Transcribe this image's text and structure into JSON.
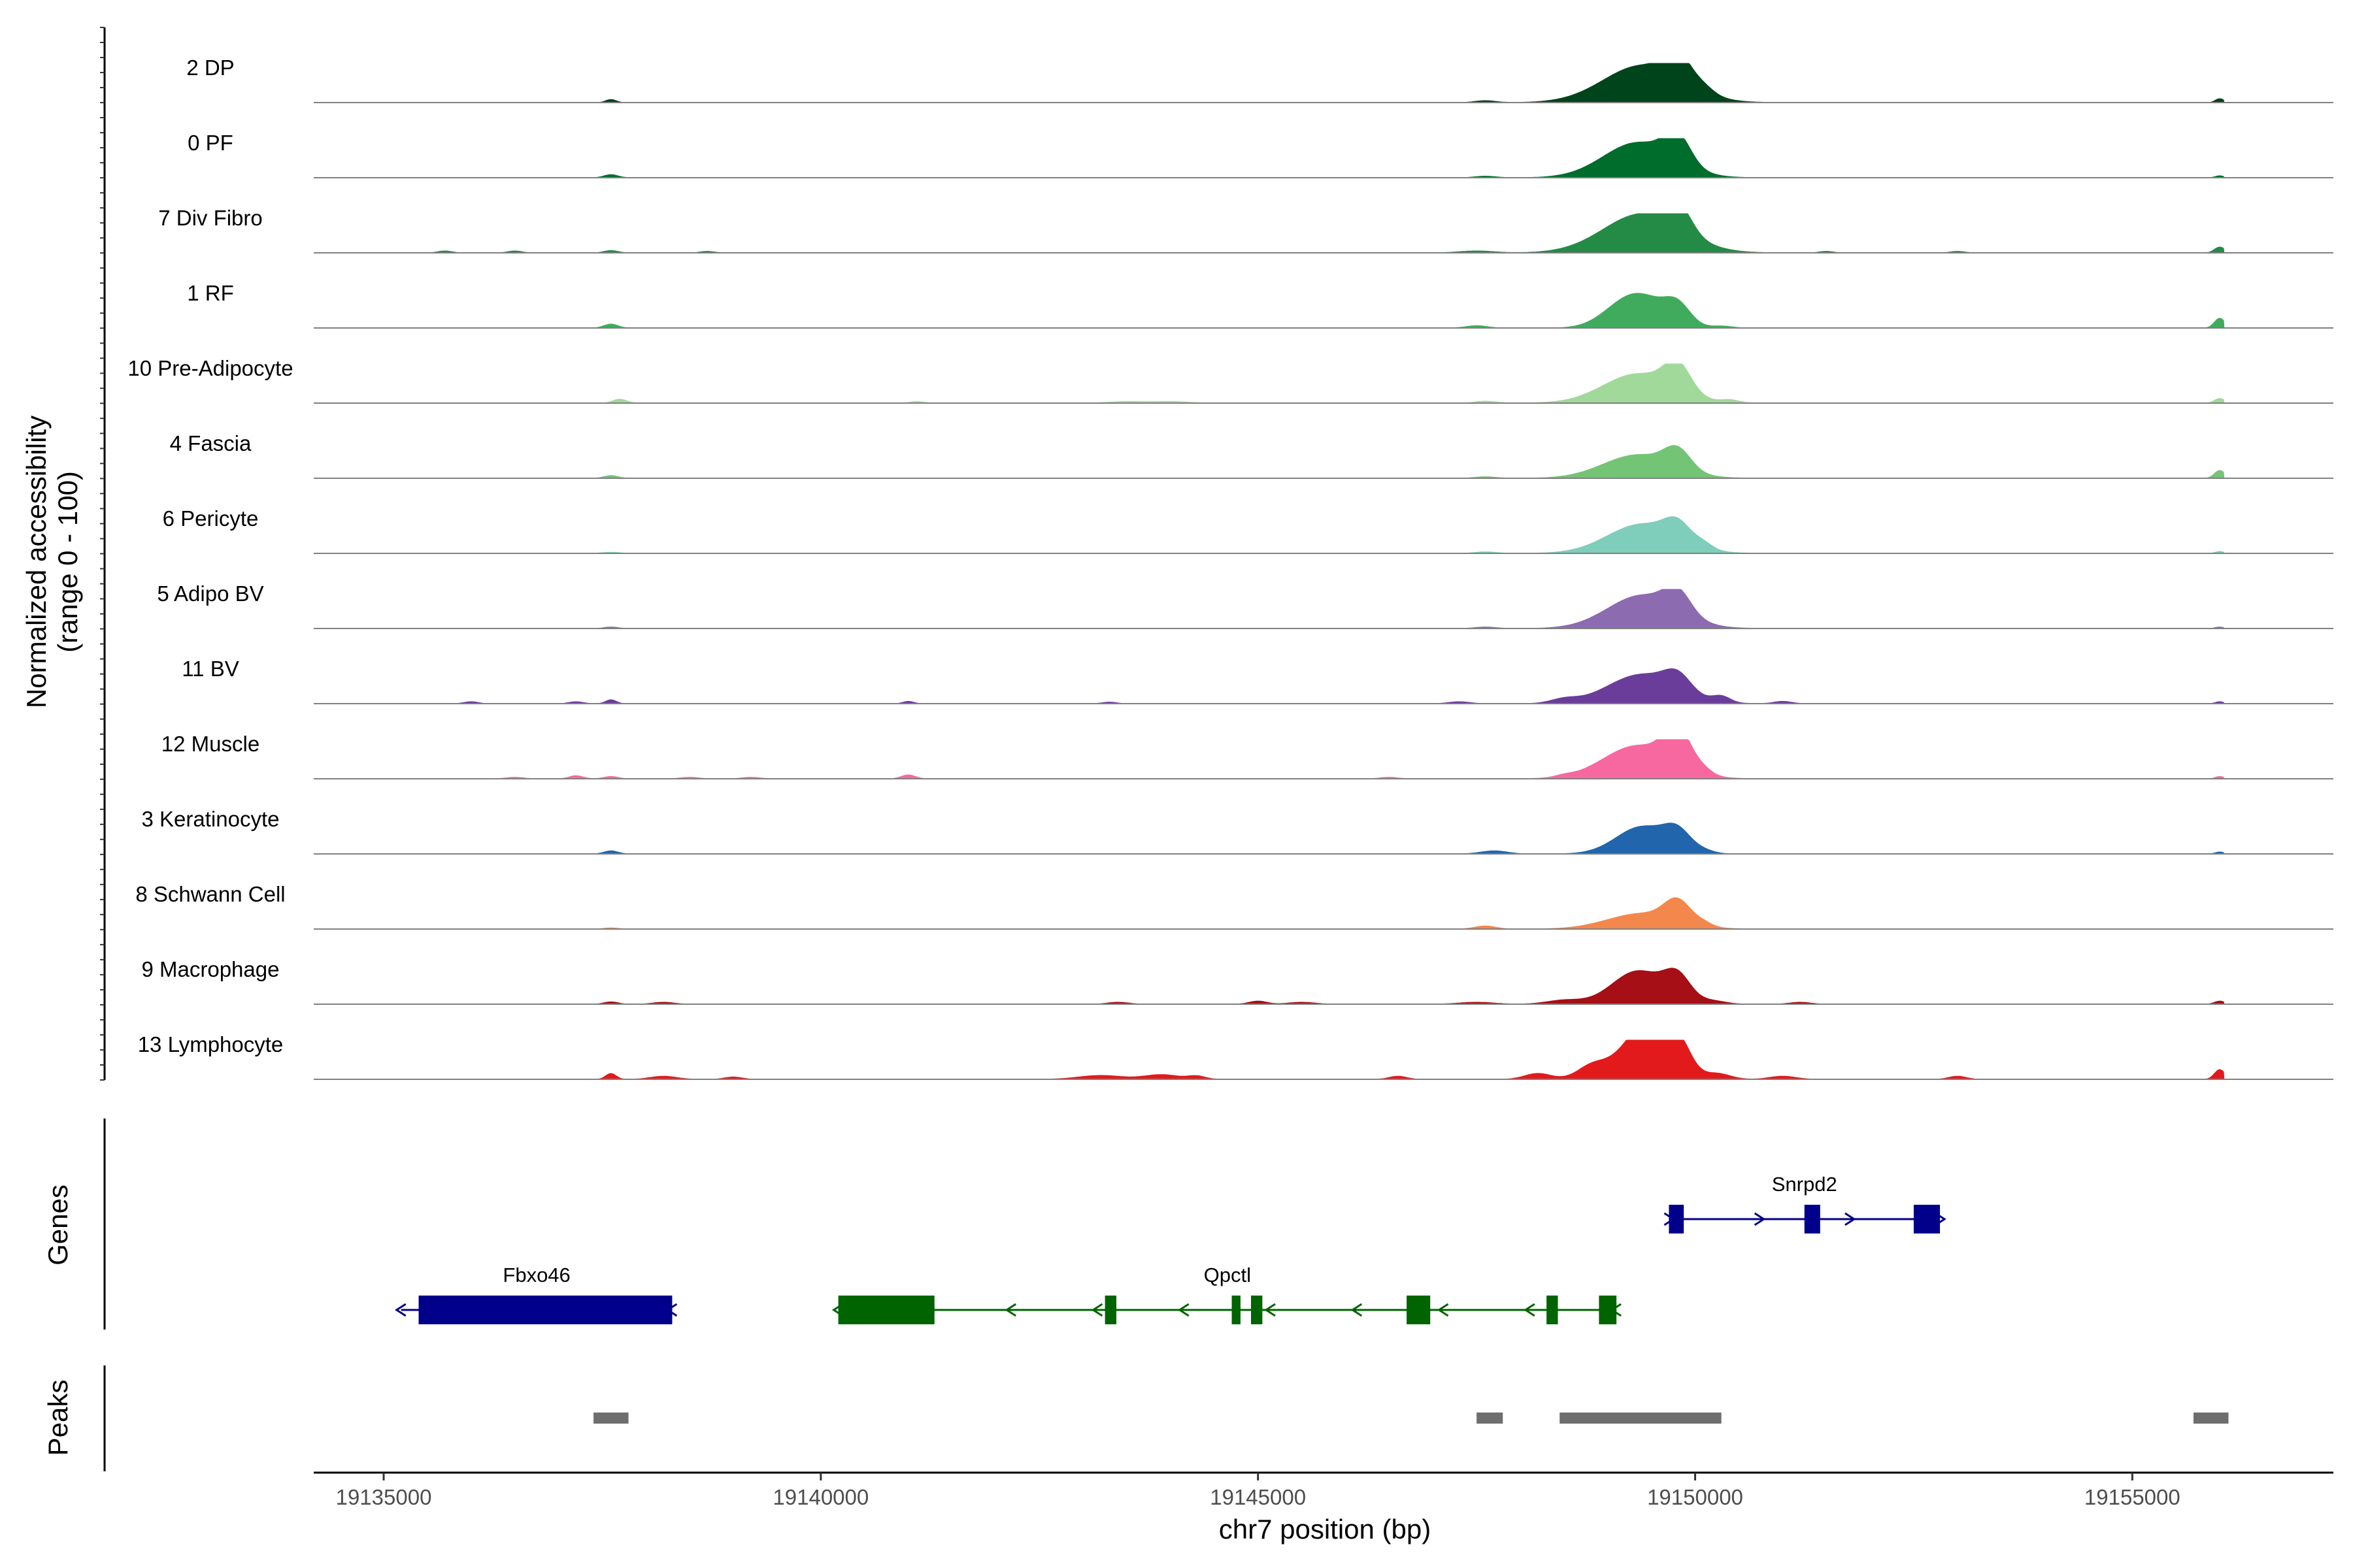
{
  "chart_data": {
    "type": "area",
    "title": "",
    "ylabel_line1": "Normalized accessibility",
    "ylabel_line2": "(range 0 - 100)",
    "xlabel": "chr7 position (bp)",
    "xlim": [
      19134200,
      19157300
    ],
    "ylim": [
      0,
      100
    ],
    "x_ticks": [
      19135000,
      19140000,
      19145000,
      19150000,
      19155000
    ],
    "x_tick_labels": [
      "19135000",
      "19140000",
      "19145000",
      "19150000",
      "19155000"
    ],
    "tracks": [
      {
        "name": "2 DP",
        "color": "#00441b",
        "peaks": [
          [
            19137600,
            8,
            60
          ],
          [
            19147600,
            5,
            120
          ],
          [
            19149400,
            95,
            450
          ],
          [
            19149800,
            70,
            150
          ],
          [
            19150100,
            15,
            120
          ],
          [
            19156000,
            10,
            50
          ]
        ]
      },
      {
        "name": "0 PF",
        "color": "#006d2c",
        "peaks": [
          [
            19137600,
            8,
            80
          ],
          [
            19147600,
            4,
            120
          ],
          [
            19149350,
            90,
            400
          ],
          [
            19149800,
            70,
            150
          ],
          [
            19156000,
            5,
            50
          ]
        ]
      },
      {
        "name": "7 Div Fibro",
        "color": "#238b45",
        "peaks": [
          [
            19135700,
            5,
            80
          ],
          [
            19136500,
            5,
            80
          ],
          [
            19137600,
            6,
            80
          ],
          [
            19138700,
            4,
            80
          ],
          [
            19147500,
            5,
            200
          ],
          [
            19149400,
            100,
            450
          ],
          [
            19149800,
            65,
            150
          ],
          [
            19151500,
            4,
            80
          ],
          [
            19153000,
            4,
            80
          ],
          [
            19156000,
            15,
            60
          ]
        ]
      },
      {
        "name": "1 RF",
        "color": "#41ab5d",
        "peaks": [
          [
            19137600,
            10,
            80
          ],
          [
            19147500,
            6,
            120
          ],
          [
            19149150,
            45,
            250
          ],
          [
            19149450,
            60,
            250
          ],
          [
            19149800,
            50,
            150
          ],
          [
            19150300,
            5,
            120
          ],
          [
            19156000,
            25,
            60
          ]
        ]
      },
      {
        "name": "10 Pre-Adipocyte",
        "color": "#a1d99b",
        "peaks": [
          [
            19137700,
            10,
            80
          ],
          [
            19141100,
            4,
            80
          ],
          [
            19143500,
            4,
            200
          ],
          [
            19144000,
            4,
            200
          ],
          [
            19147600,
            5,
            120
          ],
          [
            19149350,
            75,
            400
          ],
          [
            19149800,
            70,
            150
          ],
          [
            19150400,
            7,
            100
          ],
          [
            19156000,
            12,
            60
          ]
        ]
      },
      {
        "name": "4 Fascia",
        "color": "#74c476",
        "peaks": [
          [
            19137600,
            7,
            80
          ],
          [
            19147600,
            4,
            120
          ],
          [
            19149350,
            60,
            400
          ],
          [
            19149800,
            50,
            150
          ],
          [
            19156000,
            20,
            60
          ]
        ]
      },
      {
        "name": "6 Pericyte",
        "color": "#7fcdbb",
        "peaks": [
          [
            19137600,
            3,
            100
          ],
          [
            19147600,
            4,
            120
          ],
          [
            19149400,
            75,
            400
          ],
          [
            19149800,
            45,
            150
          ],
          [
            19150100,
            12,
            100
          ],
          [
            19156000,
            5,
            50
          ]
        ]
      },
      {
        "name": "5 Adipo BV",
        "color": "#8c6bb1",
        "peaks": [
          [
            19137600,
            4,
            80
          ],
          [
            19147600,
            4,
            120
          ],
          [
            19149400,
            85,
            400
          ],
          [
            19149800,
            55,
            150
          ],
          [
            19156000,
            4,
            50
          ]
        ]
      },
      {
        "name": "11 BV",
        "color": "#6a3d9a",
        "peaks": [
          [
            19136000,
            5,
            80
          ],
          [
            19137200,
            5,
            80
          ],
          [
            19137600,
            10,
            60
          ],
          [
            19141000,
            6,
            60
          ],
          [
            19143300,
            4,
            80
          ],
          [
            19147300,
            5,
            120
          ],
          [
            19148500,
            10,
            150
          ],
          [
            19149400,
            75,
            400
          ],
          [
            19149800,
            40,
            150
          ],
          [
            19150300,
            15,
            100
          ],
          [
            19151000,
            6,
            100
          ],
          [
            19156000,
            5,
            50
          ]
        ]
      },
      {
        "name": "12 Muscle",
        "color": "#f768a1",
        "peaks": [
          [
            19136500,
            4,
            100
          ],
          [
            19137200,
            8,
            80
          ],
          [
            19137600,
            6,
            80
          ],
          [
            19138500,
            4,
            100
          ],
          [
            19139200,
            4,
            100
          ],
          [
            19141000,
            10,
            80
          ],
          [
            19146500,
            4,
            100
          ],
          [
            19148500,
            4,
            100
          ],
          [
            19149350,
            85,
            400
          ],
          [
            19149800,
            95,
            150
          ],
          [
            19150100,
            10,
            100
          ],
          [
            19156000,
            6,
            50
          ]
        ]
      },
      {
        "name": "3 Keratinocyte",
        "color": "#2166ac",
        "peaks": [
          [
            19137600,
            8,
            80
          ],
          [
            19147700,
            8,
            150
          ],
          [
            19149400,
            70,
            300
          ],
          [
            19149800,
            45,
            150
          ],
          [
            19150100,
            6,
            120
          ],
          [
            19156000,
            5,
            50
          ]
        ]
      },
      {
        "name": "8 Schwann Cell",
        "color": "#f4874b",
        "peaks": [
          [
            19137600,
            3,
            80
          ],
          [
            19147600,
            8,
            120
          ],
          [
            19149400,
            40,
            400
          ],
          [
            19149800,
            55,
            150
          ],
          [
            19150100,
            8,
            100
          ]
        ]
      },
      {
        "name": "9 Macrophage",
        "color": "#a50f15",
        "peaks": [
          [
            19137600,
            6,
            80
          ],
          [
            19138200,
            5,
            120
          ],
          [
            19143400,
            5,
            120
          ],
          [
            19145000,
            8,
            100
          ],
          [
            19145500,
            5,
            150
          ],
          [
            19147500,
            5,
            200
          ],
          [
            19148500,
            10,
            200
          ],
          [
            19149350,
            85,
            300
          ],
          [
            19149800,
            60,
            150
          ],
          [
            19150200,
            8,
            150
          ],
          [
            19151200,
            5,
            120
          ],
          [
            19156000,
            8,
            60
          ]
        ]
      },
      {
        "name": "13 Lymphocyte",
        "color": "#e31a1c",
        "peaks": [
          [
            19137600,
            15,
            60
          ],
          [
            19138200,
            8,
            150
          ],
          [
            19139000,
            6,
            100
          ],
          [
            19143200,
            10,
            250
          ],
          [
            19143900,
            12,
            200
          ],
          [
            19144300,
            8,
            100
          ],
          [
            19146600,
            8,
            100
          ],
          [
            19148200,
            15,
            150
          ],
          [
            19148800,
            20,
            150
          ],
          [
            19149200,
            50,
            300
          ],
          [
            19149450,
            100,
            200
          ],
          [
            19149800,
            95,
            150
          ],
          [
            19150250,
            15,
            150
          ],
          [
            19151000,
            8,
            150
          ],
          [
            19153000,
            8,
            100
          ],
          [
            19156000,
            25,
            60
          ]
        ]
      }
    ],
    "genes_label": "Genes",
    "genes": [
      {
        "name": "Fbxo46",
        "color": "#00008b",
        "strand": "-",
        "start": 19135200,
        "end": 19138300,
        "exons": [
          [
            19135400,
            19138300
          ]
        ]
      },
      {
        "name": "Qpctl",
        "color": "#006400",
        "strand": "-",
        "start": 19140200,
        "end": 19149100,
        "exons": [
          [
            19140200,
            19141300
          ],
          [
            19143250,
            19143380
          ],
          [
            19144700,
            19144800
          ],
          [
            19144920,
            19145050
          ],
          [
            19146700,
            19146970
          ],
          [
            19148300,
            19148430
          ],
          [
            19148900,
            19149100
          ]
        ]
      },
      {
        "name": "Snrpd2",
        "color": "#00008b",
        "strand": "+",
        "start": 19149700,
        "end": 19152800,
        "exons": [
          [
            19149700,
            19149870
          ],
          [
            19151250,
            19151430
          ],
          [
            19152500,
            19152800
          ]
        ]
      }
    ],
    "peaks_label": "Peaks",
    "peak_regions": [
      [
        19137400,
        19137800
      ],
      [
        19147500,
        19147800
      ],
      [
        19148450,
        19150300
      ],
      [
        19155700,
        19156100
      ]
    ]
  }
}
